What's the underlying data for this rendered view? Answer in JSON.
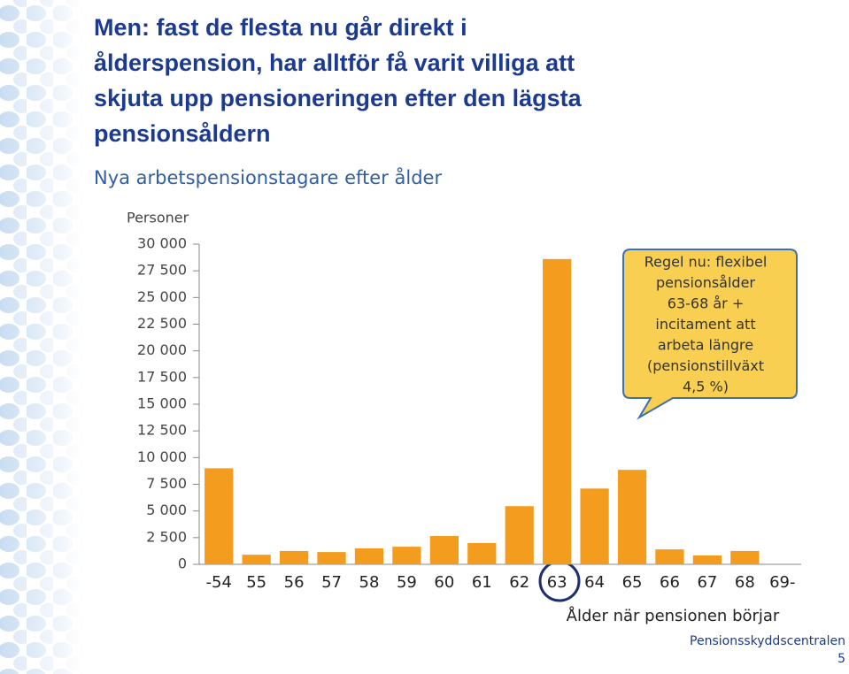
{
  "title_lines": [
    "Men: fast de flesta nu går direkt i",
    "ålderspension, har alltför få varit villiga att",
    "skjuta upp pensioneringen efter den lägsta",
    "pensionsåldern"
  ],
  "subtitle": "Nya arbetspensionstagare efter ålder",
  "footer": {
    "organization": "Pensionsskyddscentralen",
    "page": "5"
  },
  "chart_data": {
    "type": "bar",
    "y_label": "Personer",
    "x_label": "Ålder när pensionen börjar",
    "categories": [
      "-54",
      "55",
      "56",
      "57",
      "58",
      "59",
      "60",
      "61",
      "62",
      "63",
      "64",
      "65",
      "66",
      "67",
      "68",
      "69-"
    ],
    "values": [
      9000,
      900,
      1250,
      1150,
      1500,
      1650,
      2650,
      2000,
      5450,
      28600,
      7100,
      8850,
      1400,
      830,
      1250,
      null
    ],
    "color": "#f39c1d",
    "ylim": [
      0,
      30000
    ],
    "yticks": [
      0,
      {
        "value": 2500,
        "label": "2 500"
      },
      {
        "value": 5000,
        "label": "5 000"
      },
      {
        "value": 7500,
        "label": "7 500"
      },
      {
        "value": 10000,
        "label": "10 000"
      },
      {
        "value": 12500,
        "label": "12 500"
      },
      {
        "value": 15000,
        "label": "15 000"
      },
      {
        "value": 17500,
        "label": "17 500"
      },
      {
        "value": 20000,
        "label": "20 000"
      },
      {
        "value": 22500,
        "label": "22 500"
      },
      {
        "value": 25000,
        "label": "25 000"
      },
      {
        "value": 27500,
        "label": "27 500"
      },
      {
        "value": 30000,
        "label": "30 000"
      }
    ],
    "annotation_lines": [
      "Regel nu: flexibel",
      "pensionsålder",
      "63-68 år +",
      "incitament att",
      "arbeta längre",
      "(pensionstillväxt",
      "4,5 %)"
    ]
  }
}
